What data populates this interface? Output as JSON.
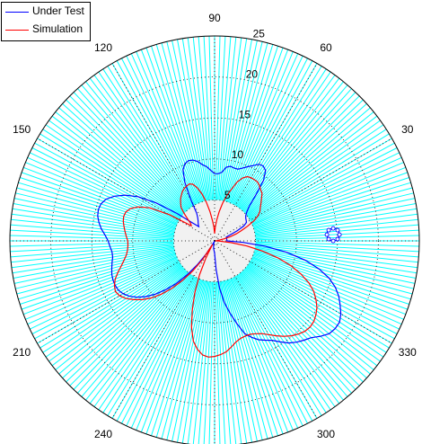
{
  "chart_data": {
    "type": "polar",
    "radial_axis": {
      "min": 0,
      "max": 25,
      "ticks": [
        5,
        10,
        15,
        20,
        25
      ],
      "tick_angle_deg": 80
    },
    "angle_ticks_deg": [
      90,
      60,
      30,
      0,
      330,
      300,
      270,
      240,
      210,
      180,
      150,
      120
    ],
    "angle_tick_labels": [
      "90",
      "60",
      "30",
      "",
      "330",
      "300",
      "",
      "240",
      "210",
      "",
      "150",
      "120"
    ],
    "angle_grid_step_deg": 1.5,
    "grid": true,
    "legend": {
      "placement": "top-left",
      "entries": [
        {
          "label": "Under Test",
          "color": "#0000ff"
        },
        {
          "label": "Simulation",
          "color": "#ff0000"
        }
      ]
    },
    "colors": {
      "grid": "#00ffff",
      "background_region": "#c8c8c8"
    },
    "series": [
      {
        "name": "Under Test",
        "color": "#0000ff",
        "angle_deg": [
          0,
          3,
          6,
          9,
          12,
          15,
          18,
          21,
          24,
          27,
          30,
          33,
          36,
          39,
          42,
          45,
          48,
          51,
          54,
          57,
          60,
          63,
          66,
          69,
          72,
          75,
          78,
          81,
          84,
          87,
          90,
          93,
          96,
          99,
          102,
          105,
          108,
          111,
          114,
          117,
          120,
          123,
          126,
          129,
          132,
          135,
          138,
          141,
          144,
          147,
          150,
          153,
          156,
          159,
          162,
          165,
          168,
          171,
          174,
          177,
          180,
          183,
          186,
          189,
          192,
          195,
          198,
          201,
          204,
          207,
          210,
          213,
          216,
          219,
          222,
          225,
          228,
          231,
          234,
          237,
          240,
          243,
          246,
          249,
          252,
          255,
          258,
          261,
          264,
          267,
          270,
          273,
          276,
          279,
          282,
          285,
          288,
          291,
          294,
          297,
          300,
          303,
          306,
          309,
          312,
          315,
          318,
          321,
          324,
          327,
          330,
          333,
          336,
          339,
          342,
          345,
          348,
          351,
          354,
          357
        ],
        "r": [
          1.5,
          1.5,
          1.5,
          1.5,
          1.5,
          1.5,
          1.5,
          2,
          3,
          4,
          4.5,
          4.6,
          4.7,
          4.9,
          5.3,
          6,
          7.5,
          9.5,
          10.6,
          10.9,
          10.8,
          10.3,
          9.9,
          9.5,
          9.2,
          9.2,
          9.3,
          9.1,
          8.4,
          8.2,
          8.2,
          8.6,
          9.1,
          9.4,
          9.9,
          10.2,
          10.3,
          10.1,
          9.5,
          8,
          5.8,
          4,
          3.5,
          3.2,
          3,
          2.8,
          2.6,
          3.5,
          5.7,
          8.5,
          10.8,
          12.3,
          13.4,
          14.2,
          14.6,
          14.7,
          14.6,
          14.3,
          13.9,
          13.4,
          13,
          12.8,
          12.6,
          12.6,
          12.8,
          13,
          13.2,
          13.3,
          13.3,
          13.2,
          12.9,
          12.4,
          11.7,
          10.8,
          9.7,
          8.4,
          7,
          5.3,
          3.6,
          2,
          0.5,
          0.2,
          0.1,
          0.1,
          0.2,
          0.4,
          0.6,
          0.8,
          1,
          1.2,
          1.5,
          3.5,
          5.8,
          7.6,
          9,
          10.4,
          11.9,
          12.6,
          13.2,
          13.6,
          14,
          14.7,
          15.4,
          15.9,
          16.3,
          16.7,
          17.4,
          18,
          18.2,
          18.2,
          17.8,
          17.2,
          16.6,
          15.8,
          14.7,
          13.2,
          11.3,
          8.9,
          6.2,
          3.5
        ]
      },
      {
        "name": "Simulation",
        "color": "#ff0000",
        "angle_deg": [
          0,
          3,
          6,
          9,
          12,
          15,
          18,
          21,
          24,
          27,
          30,
          33,
          36,
          39,
          42,
          45,
          48,
          51,
          54,
          57,
          60,
          63,
          66,
          69,
          72,
          75,
          78,
          81,
          84,
          87,
          90,
          93,
          96,
          99,
          102,
          105,
          108,
          111,
          114,
          117,
          120,
          123,
          126,
          129,
          132,
          135,
          138,
          141,
          144,
          147,
          150,
          153,
          156,
          159,
          162,
          165,
          168,
          171,
          174,
          177,
          180,
          183,
          186,
          189,
          192,
          195,
          198,
          201,
          204,
          207,
          210,
          213,
          216,
          219,
          222,
          225,
          228,
          231,
          234,
          237,
          240,
          243,
          246,
          249,
          252,
          255,
          258,
          261,
          264,
          267,
          270,
          273,
          276,
          279,
          282,
          285,
          288,
          291,
          294,
          297,
          300,
          303,
          306,
          309,
          312,
          315,
          318,
          321,
          324,
          327,
          330,
          333,
          336,
          339,
          342,
          345,
          348,
          351,
          354,
          357
        ],
        "r": [
          0.1,
          0.2,
          0.3,
          0.6,
          1.2,
          2,
          2.8,
          3.5,
          4.4,
          5.4,
          6.1,
          6.6,
          6.9,
          7.3,
          7.7,
          8.2,
          8.4,
          8.7,
          8.9,
          8.9,
          8.9,
          8.8,
          8.4,
          7.7,
          6.6,
          5.7,
          4.7,
          3.6,
          2.6,
          1.7,
          0.9,
          1.7,
          2.5,
          3.6,
          4.8,
          5.9,
          6.8,
          7.4,
          7.6,
          7.5,
          7.4,
          7.2,
          6.9,
          6.6,
          6.2,
          5.8,
          5,
          4.2,
          3.6,
          3.4,
          6.4,
          8.9,
          10.2,
          11,
          11.4,
          11.5,
          11.4,
          11.2,
          11,
          10.8,
          10.6,
          10.6,
          10.7,
          10.9,
          11.3,
          11.8,
          12.4,
          13,
          13.4,
          13.6,
          13.4,
          12.9,
          12.2,
          11.4,
          10.4,
          9.2,
          7.8,
          6.2,
          4.5,
          2.7,
          0.5,
          2.3,
          4.5,
          6.7,
          8.8,
          10.9,
          12.5,
          13.4,
          14,
          14.2,
          14.1,
          13.9,
          13.6,
          13.1,
          12.6,
          12.3,
          12.2,
          12.2,
          12.4,
          12.7,
          13.2,
          13.8,
          14.4,
          14.9,
          15.3,
          15.6,
          15.7,
          15.6,
          15.3,
          14.9,
          14.3,
          13.6,
          12.6,
          11.3,
          9.8,
          8,
          6,
          4,
          2,
          0.5
        ]
      }
    ],
    "annotations": [
      {
        "kind": "small-ring-marker",
        "color": "#0000ff",
        "angle_deg": 3,
        "r": 14.5
      }
    ]
  }
}
